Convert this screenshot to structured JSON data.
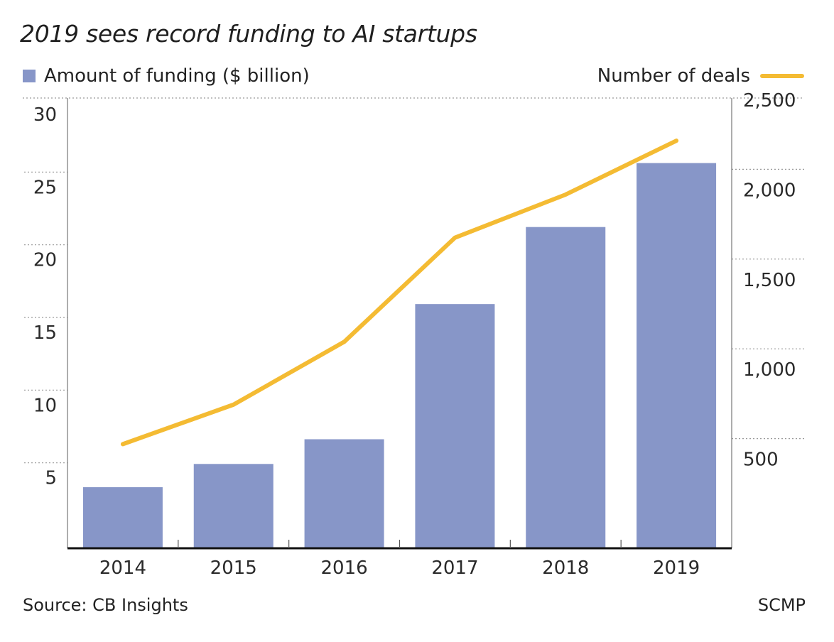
{
  "colors": {
    "bar": "#8796c8",
    "line": "#f4bb33",
    "axis": "#111111",
    "grid": "#9a9a9a"
  },
  "chart_data": {
    "type": "bar",
    "title": "2019 sees record funding to AI startups",
    "categories": [
      "2014",
      "2015",
      "2016",
      "2017",
      "2018",
      "2019"
    ],
    "series": [
      {
        "name": "Amount of funding ($ billion)",
        "kind": "bar",
        "axis": "left",
        "values": [
          4.2,
          5.8,
          7.5,
          16.8,
          22.1,
          26.5
        ]
      },
      {
        "name": "Number of deals",
        "kind": "line",
        "axis": "right",
        "values": [
          580,
          800,
          1150,
          1730,
          1970,
          2270
        ]
      }
    ],
    "y_left": {
      "ticks": [
        5,
        10,
        15,
        20,
        25,
        30
      ],
      "ylim": [
        0,
        30
      ]
    },
    "y_right": {
      "ticks": [
        "500",
        "1,000",
        "1,500",
        "2,000",
        "2,500"
      ],
      "tick_values": [
        500,
        1000,
        1500,
        2000,
        2500
      ],
      "ylim": [
        0,
        2500
      ]
    },
    "grid": "dotted horizontal",
    "legend_placement": "top"
  },
  "legend": {
    "left_label": "Amount of funding ($ billion)",
    "right_label": "Number of deals"
  },
  "footer": {
    "source": "Source: CB Insights",
    "credit": "SCMP"
  }
}
